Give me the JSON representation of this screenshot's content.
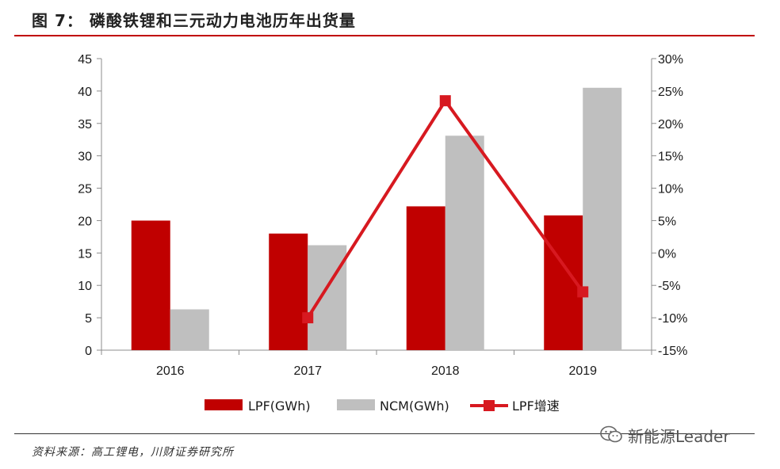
{
  "header": {
    "figure_title": "图 7：  磷酸铁锂和三元动力电池历年出货量"
  },
  "footer": {
    "source": "资料来源：高工锂电，川财证券研究所",
    "watermark": "新能源Leader",
    "watermark_icon": "wechat-icon"
  },
  "colors": {
    "lpf": "#c00000",
    "ncm": "#bfbfbf",
    "growth": "#d71920",
    "title_rule": "#c00000"
  },
  "chart_data": {
    "type": "bar",
    "categories": [
      "2016",
      "2017",
      "2018",
      "2019"
    ],
    "series": [
      {
        "name": "LPF(GWh)",
        "type": "bar",
        "axis": "left",
        "values": [
          20.0,
          18.0,
          22.2,
          20.8
        ]
      },
      {
        "name": "NCM(GWh)",
        "type": "bar",
        "axis": "left",
        "values": [
          6.3,
          16.2,
          33.1,
          40.5
        ]
      },
      {
        "name": "LPF增速",
        "type": "line",
        "axis": "right",
        "marker": "square",
        "values": [
          null,
          -10,
          23.5,
          -6
        ]
      }
    ],
    "y_left": {
      "lim": [
        0,
        45
      ],
      "ticks": [
        0,
        5,
        10,
        15,
        20,
        25,
        30,
        35,
        40,
        45
      ],
      "tick_labels": [
        "0",
        "5",
        "10",
        "15",
        "20",
        "25",
        "30",
        "35",
        "40",
        "45"
      ]
    },
    "y_right": {
      "lim": [
        -15,
        30
      ],
      "ticks": [
        -15,
        -10,
        -5,
        0,
        5,
        10,
        15,
        20,
        25,
        30
      ],
      "tick_labels": [
        "-15%",
        "-10%",
        "-5%",
        "0%",
        "5%",
        "10%",
        "15%",
        "20%",
        "25%",
        "30%"
      ]
    },
    "legend_position": "bottom",
    "grid": false
  }
}
